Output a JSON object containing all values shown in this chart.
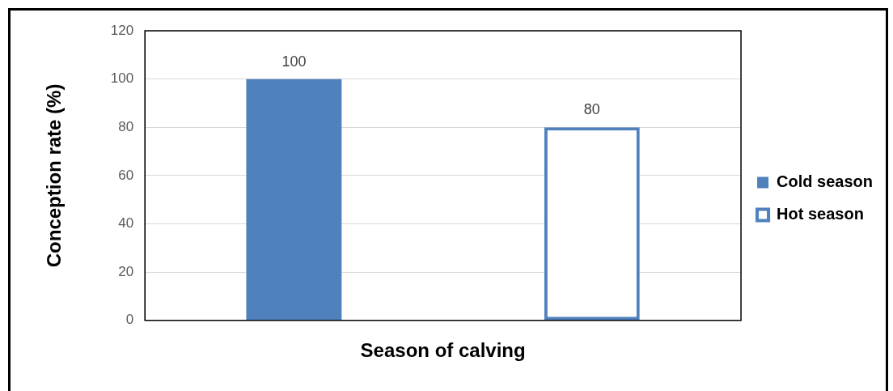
{
  "chart_data": {
    "type": "bar",
    "xlabel": "Season of calving",
    "ylabel": "Conception rate (%)",
    "categories": [
      null,
      null
    ],
    "series": [
      {
        "name": "Cold season",
        "color": "#4f81bd",
        "values": [
          100,
          null
        ]
      },
      {
        "name": "Hot season",
        "color": "#4f81bd",
        "values": [
          null,
          80
        ]
      }
    ],
    "ylim": [
      0,
      120
    ],
    "yticks": [
      0,
      20,
      40,
      60,
      80,
      100,
      120
    ],
    "grid": "y",
    "legend": "right",
    "data_labels": true
  }
}
